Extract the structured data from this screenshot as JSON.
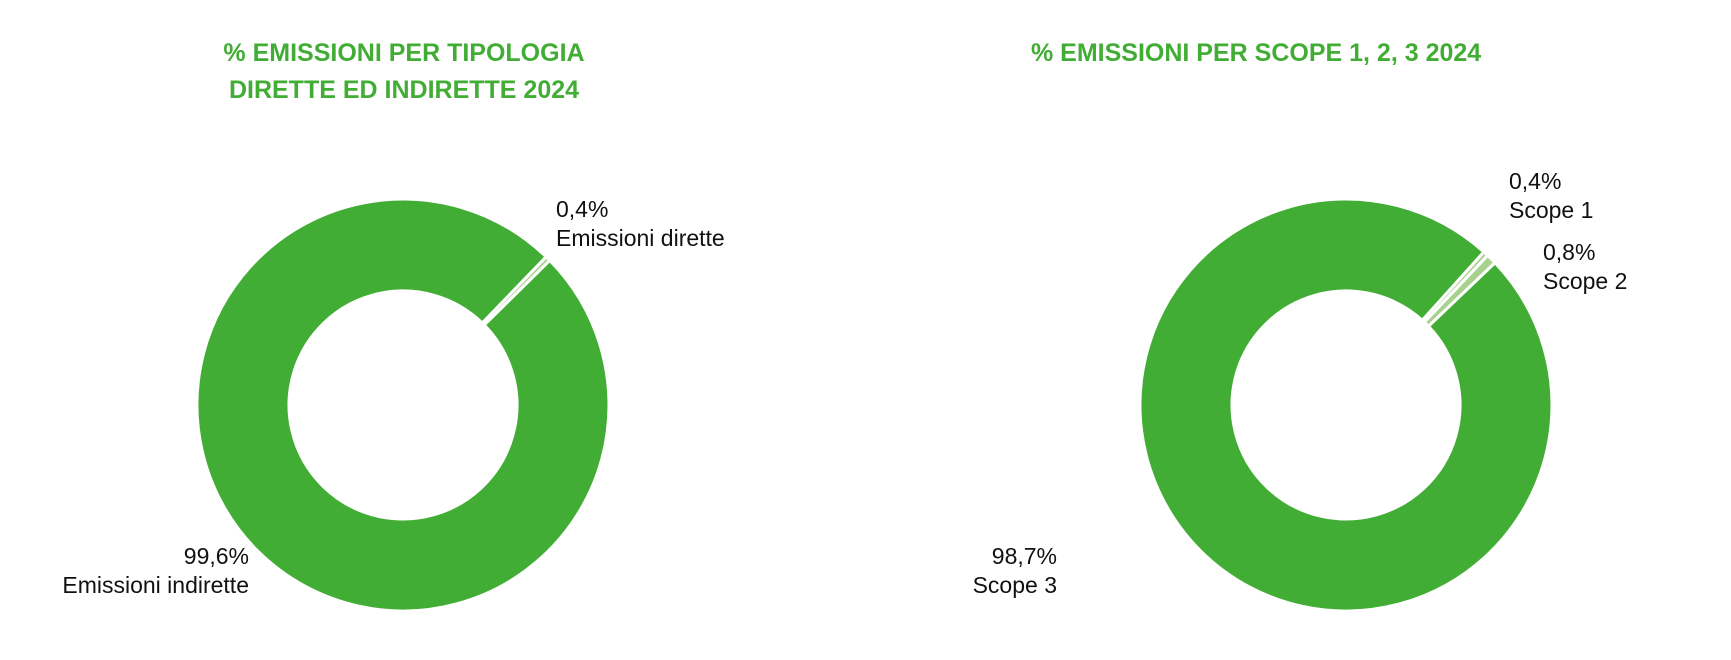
{
  "colors": {
    "title": "#42ad35",
    "main_slice": "#42ad35",
    "minor_slice": "#a9d18e",
    "separator": "#ffffff",
    "label_text": "#111111"
  },
  "chart_data": [
    {
      "type": "pie",
      "variant": "donut",
      "title": "% EMISSIONI PER TIPOLOGIA\nDIRETTE ED INDIRETTE 2024",
      "categories": [
        "Emissioni dirette",
        "Emissioni indirette"
      ],
      "values": [
        0.4,
        99.6
      ],
      "value_labels": [
        "0,4%",
        "99,6%"
      ],
      "colors": [
        "#a9d18e",
        "#42ad35"
      ],
      "start_angle_deg": 44,
      "direction": "clockwise",
      "legend": "none"
    },
    {
      "type": "pie",
      "variant": "donut",
      "title": "% EMISSIONI PER SCOPE 1, 2, 3 2024",
      "categories": [
        "Scope 1",
        "Scope 2",
        "Scope 3"
      ],
      "values": [
        0.4,
        0.8,
        98.7
      ],
      "value_labels": [
        "0,4%",
        "0,8%",
        "98,7%"
      ],
      "colors": [
        "#a9d18e",
        "#a9d18e",
        "#42ad35"
      ],
      "start_angle_deg": 42,
      "direction": "clockwise",
      "legend": "none"
    }
  ]
}
